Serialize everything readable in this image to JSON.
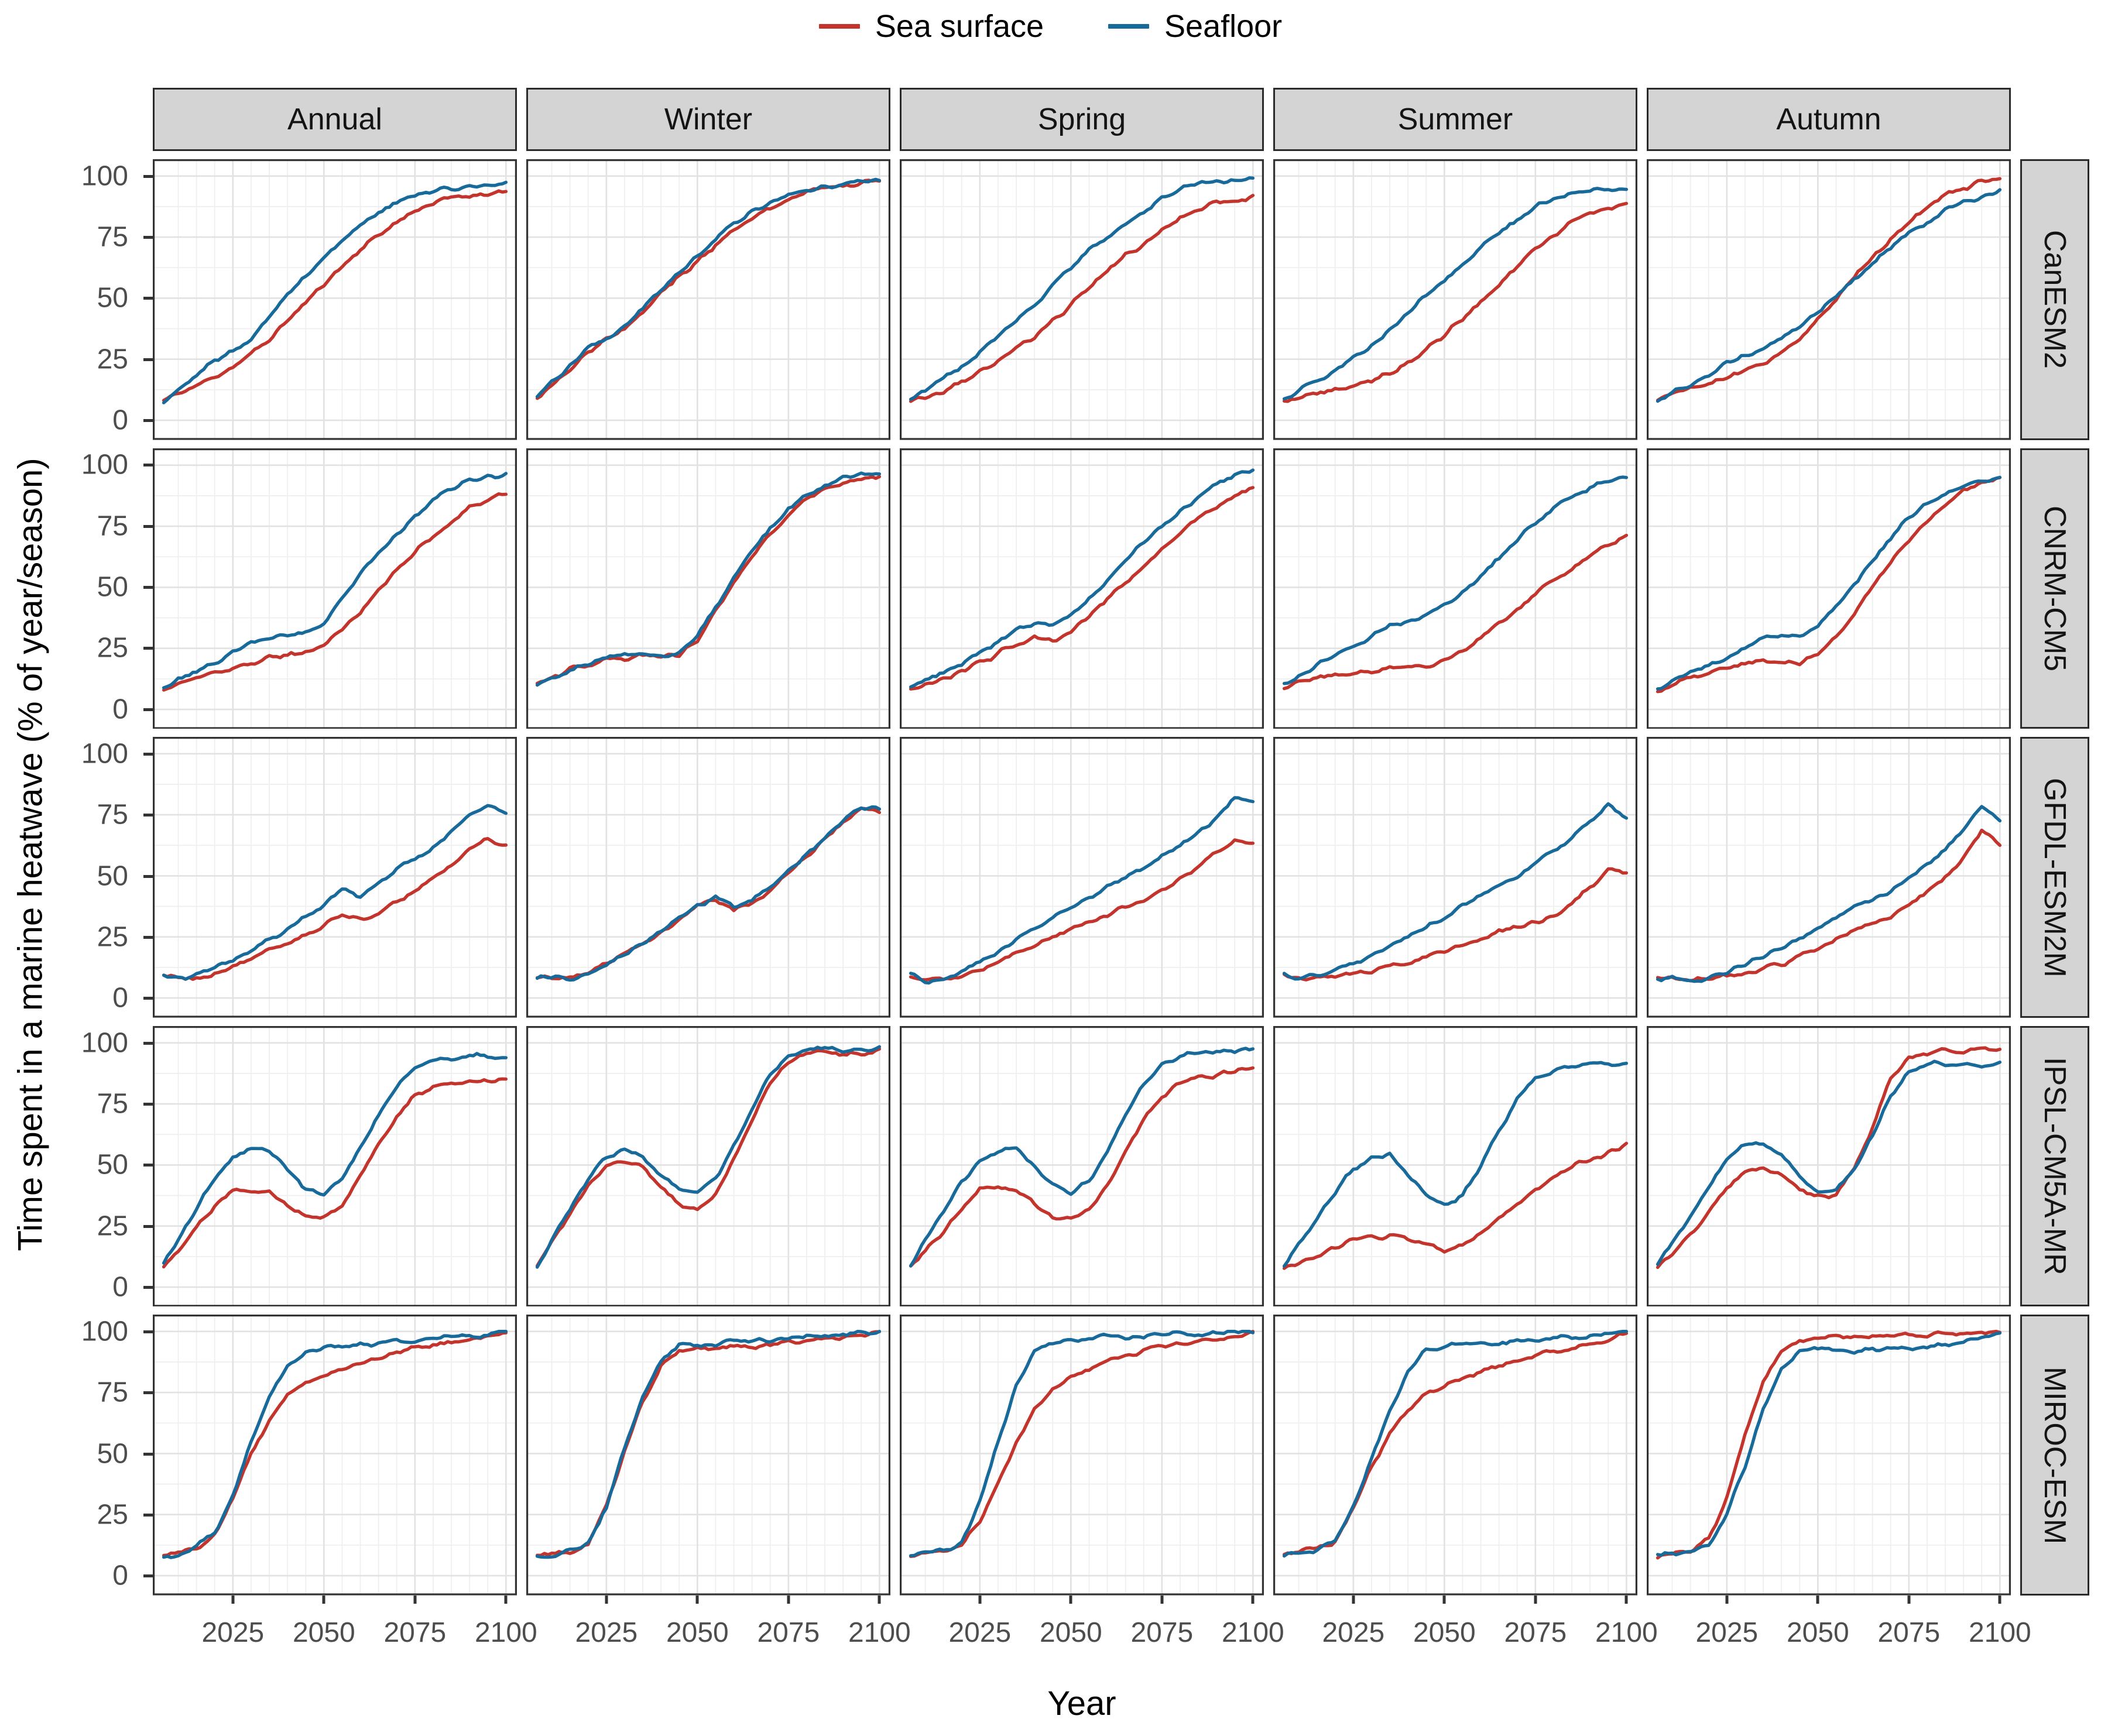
{
  "legend": {
    "items": [
      {
        "label": "Sea surface",
        "color": "#c3342c"
      },
      {
        "label": "Seafloor",
        "color": "#186a9a"
      }
    ]
  },
  "axes": {
    "x_label": "Year",
    "y_label": "Time spent in a marine heatwave (% of year/season)",
    "x_ticks": [
      2025,
      2050,
      2075,
      2100
    ],
    "y_ticks": [
      100,
      75,
      50,
      25,
      0
    ]
  },
  "facets": {
    "columns": [
      "Annual",
      "Winter",
      "Spring",
      "Summer",
      "Autumn"
    ],
    "rows": [
      "CanESM2",
      "CNRM-CM5",
      "GFDL-ESM2M",
      "IPSL-CM5A-MR",
      "MIROC-ESM"
    ]
  },
  "style": {
    "sea_surface_color": "#c3342c",
    "seafloor_color": "#186a9a",
    "grid_major_color": "#e2e2e2",
    "grid_minor_color": "#efefef",
    "panel_border_color": "#333333",
    "strip_fill": "#d4d4d4"
  },
  "chart_data": {
    "type": "line",
    "title": "",
    "xlabel": "Year",
    "ylabel": "Time spent in a marine heatwave (% of year/season)",
    "xlim": [
      2006,
      2100
    ],
    "ylim": [
      0,
      100
    ],
    "grid": true,
    "legend_position": "top",
    "series_names": [
      "Sea surface",
      "Seafloor"
    ],
    "x": [
      2006,
      2010,
      2015,
      2020,
      2025,
      2030,
      2035,
      2040,
      2045,
      2050,
      2055,
      2060,
      2065,
      2070,
      2075,
      2080,
      2085,
      2090,
      2095,
      2100
    ],
    "panels": [
      {
        "row": "CanESM2",
        "col": "Annual",
        "sea_surface": [
          8,
          11,
          14,
          18,
          22,
          27,
          33,
          41,
          48,
          56,
          63,
          70,
          76,
          81,
          86,
          89,
          91,
          92,
          93,
          94
        ],
        "seafloor": [
          8,
          13,
          19,
          24,
          28,
          34,
          43,
          51,
          59,
          67,
          74,
          80,
          85,
          89,
          92,
          94,
          95,
          96,
          96,
          97
        ]
      },
      {
        "row": "CanESM2",
        "col": "Winter",
        "sea_surface": [
          9,
          14,
          21,
          28,
          33,
          37,
          44,
          52,
          59,
          65,
          72,
          78,
          83,
          87,
          91,
          93,
          95,
          96,
          97,
          98
        ],
        "seafloor": [
          9,
          15,
          22,
          29,
          34,
          38,
          46,
          54,
          61,
          67,
          74,
          80,
          85,
          89,
          92,
          94,
          96,
          97,
          98,
          98
        ]
      },
      {
        "row": "CanESM2",
        "col": "Spring",
        "sea_surface": [
          8,
          9,
          12,
          16,
          20,
          24,
          29,
          34,
          41,
          47,
          54,
          61,
          67,
          72,
          78,
          83,
          86,
          89,
          90,
          92
        ],
        "seafloor": [
          9,
          12,
          17,
          22,
          28,
          34,
          41,
          48,
          55,
          62,
          69,
          75,
          81,
          86,
          91,
          95,
          97,
          98,
          98,
          99
        ]
      },
      {
        "row": "CanESM2",
        "col": "Summer",
        "sea_surface": [
          8,
          9,
          11,
          13,
          14,
          16,
          19,
          24,
          29,
          35,
          42,
          49,
          56,
          63,
          70,
          76,
          81,
          85,
          87,
          88
        ],
        "seafloor": [
          9,
          12,
          16,
          20,
          25,
          31,
          37,
          44,
          51,
          57,
          64,
          70,
          77,
          82,
          87,
          91,
          93,
          94,
          95,
          95
        ]
      },
      {
        "row": "CanESM2",
        "col": "Autumn",
        "sea_surface": [
          8,
          10,
          13,
          15,
          17,
          20,
          23,
          27,
          33,
          41,
          50,
          59,
          67,
          74,
          81,
          87,
          92,
          95,
          98,
          99
        ],
        "seafloor": [
          8,
          11,
          15,
          19,
          23,
          26,
          29,
          33,
          38,
          44,
          51,
          58,
          64,
          71,
          77,
          81,
          86,
          89,
          92,
          94
        ]
      },
      {
        "row": "CNRM-CM5",
        "col": "Annual",
        "sea_surface": [
          8,
          10,
          12,
          15,
          17,
          19,
          21,
          22,
          23,
          26,
          32,
          40,
          49,
          57,
          64,
          71,
          77,
          82,
          86,
          88
        ],
        "seafloor": [
          9,
          12,
          15,
          19,
          23,
          27,
          29,
          30,
          31,
          36,
          45,
          55,
          64,
          72,
          79,
          86,
          91,
          94,
          95,
          96
        ]
      },
      {
        "row": "CNRM-CM5",
        "col": "Winter",
        "sea_surface": [
          10,
          13,
          16,
          18,
          20,
          21,
          22,
          22,
          22,
          28,
          40,
          52,
          63,
          72,
          80,
          86,
          90,
          93,
          94,
          95
        ],
        "seafloor": [
          10,
          13,
          16,
          19,
          21,
          22,
          22,
          22,
          23,
          30,
          42,
          54,
          65,
          74,
          82,
          88,
          92,
          95,
          96,
          97
        ]
      },
      {
        "row": "CNRM-CM5",
        "col": "Spring",
        "sea_surface": [
          8,
          10,
          13,
          16,
          19,
          23,
          27,
          29,
          28,
          32,
          38,
          45,
          52,
          59,
          66,
          72,
          78,
          83,
          88,
          91
        ],
        "seafloor": [
          9,
          12,
          15,
          19,
          23,
          28,
          33,
          35,
          34,
          38,
          45,
          53,
          61,
          68,
          75,
          81,
          87,
          92,
          96,
          98
        ]
      },
      {
        "row": "CNRM-CM5",
        "col": "Summer",
        "sea_surface": [
          9,
          11,
          13,
          14,
          15,
          16,
          17,
          18,
          18,
          20,
          24,
          29,
          35,
          41,
          47,
          53,
          58,
          63,
          67,
          72
        ],
        "seafloor": [
          10,
          14,
          18,
          22,
          26,
          30,
          34,
          36,
          38,
          42,
          48,
          55,
          62,
          69,
          76,
          82,
          87,
          91,
          93,
          95
        ]
      },
      {
        "row": "CNRM-CM5",
        "col": "Autumn",
        "sea_surface": [
          8,
          10,
          13,
          15,
          17,
          19,
          21,
          20,
          19,
          22,
          30,
          40,
          50,
          60,
          69,
          77,
          84,
          89,
          93,
          95
        ],
        "seafloor": [
          8,
          11,
          15,
          18,
          21,
          25,
          29,
          31,
          30,
          34,
          42,
          52,
          61,
          70,
          78,
          84,
          89,
          92,
          94,
          95
        ]
      },
      {
        "row": "GFDL-ESM2M",
        "col": "Annual",
        "sea_surface": [
          9,
          8,
          8,
          10,
          13,
          16,
          19,
          22,
          26,
          30,
          35,
          32,
          35,
          39,
          44,
          49,
          54,
          60,
          65,
          63
        ],
        "seafloor": [
          10,
          8,
          9,
          12,
          16,
          20,
          24,
          28,
          33,
          38,
          45,
          42,
          47,
          52,
          57,
          62,
          68,
          74,
          78,
          75
        ]
      },
      {
        "row": "GFDL-ESM2M",
        "col": "Winter",
        "sea_surface": [
          8,
          8,
          8,
          10,
          14,
          18,
          22,
          27,
          32,
          38,
          40,
          36,
          39,
          44,
          51,
          58,
          65,
          72,
          77,
          76
        ],
        "seafloor": [
          8,
          8,
          8,
          10,
          14,
          18,
          23,
          28,
          33,
          38,
          41,
          37,
          40,
          45,
          52,
          59,
          66,
          72,
          78,
          77
        ]
      },
      {
        "row": "GFDL-ESM2M",
        "col": "Spring",
        "sea_surface": [
          8,
          7,
          7,
          9,
          12,
          15,
          18,
          21,
          25,
          28,
          31,
          34,
          37,
          40,
          44,
          49,
          54,
          60,
          65,
          63
        ],
        "seafloor": [
          9,
          7,
          8,
          11,
          15,
          19,
          24,
          28,
          33,
          37,
          41,
          45,
          49,
          53,
          58,
          63,
          68,
          74,
          82,
          80
        ]
      },
      {
        "row": "GFDL-ESM2M",
        "col": "Summer",
        "sea_surface": [
          9,
          8,
          8,
          9,
          10,
          11,
          13,
          15,
          17,
          19,
          22,
          25,
          27,
          29,
          31,
          34,
          39,
          46,
          52,
          51
        ],
        "seafloor": [
          9,
          8,
          9,
          11,
          14,
          17,
          21,
          25,
          29,
          33,
          38,
          42,
          46,
          50,
          55,
          60,
          66,
          73,
          79,
          73
        ]
      },
      {
        "row": "GFDL-ESM2M",
        "col": "Autumn",
        "sea_surface": [
          8,
          8,
          7,
          8,
          9,
          10,
          12,
          14,
          17,
          20,
          24,
          28,
          30,
          33,
          38,
          43,
          49,
          58,
          68,
          62
        ],
        "seafloor": [
          8,
          8,
          7,
          9,
          11,
          14,
          17,
          20,
          24,
          28,
          33,
          38,
          40,
          44,
          50,
          55,
          61,
          69,
          78,
          72
        ]
      },
      {
        "row": "IPSL-CM5A-MR",
        "col": "Annual",
        "sea_surface": [
          8,
          15,
          24,
          33,
          40,
          40,
          39,
          33,
          28,
          28,
          33,
          45,
          58,
          70,
          79,
          82,
          83,
          84,
          84,
          85
        ],
        "seafloor": [
          9,
          20,
          32,
          44,
          53,
          57,
          56,
          48,
          40,
          38,
          44,
          57,
          70,
          82,
          90,
          93,
          94,
          95,
          95,
          95
        ]
      },
      {
        "row": "IPSL-CM5A-MR",
        "col": "Winter",
        "sea_surface": [
          9,
          18,
          30,
          42,
          50,
          52,
          49,
          41,
          34,
          31,
          38,
          52,
          68,
          83,
          92,
          95,
          96,
          95,
          96,
          97
        ],
        "seafloor": [
          9,
          19,
          32,
          45,
          53,
          56,
          54,
          46,
          41,
          39,
          45,
          58,
          73,
          87,
          95,
          97,
          98,
          97,
          97,
          98
        ]
      },
      {
        "row": "IPSL-CM5A-MR",
        "col": "Spring",
        "sea_surface": [
          8,
          14,
          23,
          32,
          40,
          41,
          40,
          34,
          29,
          28,
          32,
          42,
          55,
          68,
          78,
          84,
          86,
          87,
          88,
          90
        ],
        "seafloor": [
          9,
          19,
          31,
          43,
          52,
          56,
          57,
          50,
          42,
          38,
          44,
          56,
          70,
          83,
          91,
          95,
          96,
          97,
          97,
          98
        ]
      },
      {
        "row": "IPSL-CM5A-MR",
        "col": "Summer",
        "sea_surface": [
          8,
          10,
          13,
          16,
          19,
          20,
          21,
          19,
          17,
          15,
          17,
          22,
          28,
          34,
          40,
          45,
          49,
          52,
          55,
          58
        ],
        "seafloor": [
          8,
          17,
          28,
          39,
          48,
          53,
          54,
          46,
          38,
          33,
          38,
          50,
          64,
          77,
          85,
          89,
          90,
          91,
          91,
          92
        ]
      },
      {
        "row": "IPSL-CM5A-MR",
        "col": "Autumn",
        "sea_surface": [
          8,
          14,
          22,
          31,
          40,
          47,
          49,
          46,
          40,
          37,
          38,
          48,
          66,
          85,
          95,
          96,
          97,
          96,
          97,
          97
        ],
        "seafloor": [
          9,
          18,
          29,
          41,
          52,
          58,
          59,
          54,
          45,
          39,
          40,
          48,
          62,
          78,
          88,
          91,
          92,
          91,
          91,
          92
        ]
      },
      {
        "row": "MIROC-ESM",
        "col": "Annual",
        "sea_surface": [
          8,
          9,
          11,
          17,
          31,
          50,
          64,
          74,
          79,
          83,
          85,
          87,
          89,
          91,
          93,
          95,
          96,
          97,
          98,
          99
        ],
        "seafloor": [
          8,
          9,
          12,
          18,
          33,
          54,
          73,
          86,
          92,
          93,
          94,
          95,
          95,
          96,
          96,
          97,
          98,
          98,
          99,
          100
        ]
      },
      {
        "row": "MIROC-ESM",
        "col": "Winter",
        "sea_surface": [
          8,
          9,
          10,
          13,
          28,
          51,
          72,
          86,
          92,
          93,
          93,
          94,
          94,
          95,
          96,
          96,
          97,
          98,
          99,
          99
        ],
        "seafloor": [
          8,
          9,
          10,
          13,
          28,
          52,
          74,
          88,
          94,
          95,
          95,
          96,
          96,
          97,
          97,
          98,
          98,
          99,
          99,
          100
        ]
      },
      {
        "row": "MIROC-ESM",
        "col": "Spring",
        "sea_surface": [
          8,
          9,
          10,
          12,
          22,
          38,
          55,
          68,
          76,
          81,
          85,
          88,
          90,
          92,
          94,
          95,
          96,
          97,
          98,
          100
        ],
        "seafloor": [
          8,
          9,
          10,
          14,
          30,
          55,
          78,
          92,
          96,
          97,
          97,
          98,
          98,
          98,
          99,
          99,
          99,
          99,
          100,
          100
        ]
      },
      {
        "row": "MIROC-ESM",
        "col": "Summer",
        "sea_surface": [
          8,
          10,
          11,
          14,
          27,
          44,
          58,
          68,
          74,
          78,
          81,
          84,
          86,
          88,
          90,
          92,
          93,
          95,
          97,
          99
        ],
        "seafloor": [
          8,
          9,
          10,
          14,
          28,
          48,
          68,
          84,
          92,
          94,
          95,
          95,
          95,
          96,
          96,
          97,
          97,
          98,
          99,
          100
        ]
      },
      {
        "row": "MIROC-ESM",
        "col": "Autumn",
        "sea_surface": [
          8,
          9,
          10,
          15,
          32,
          58,
          80,
          92,
          96,
          97,
          98,
          98,
          98,
          98,
          99,
          99,
          99,
          99,
          100,
          100
        ],
        "seafloor": [
          8,
          9,
          10,
          13,
          25,
          45,
          68,
          85,
          92,
          93,
          93,
          92,
          93,
          93,
          93,
          94,
          95,
          96,
          98,
          100
        ]
      }
    ]
  }
}
